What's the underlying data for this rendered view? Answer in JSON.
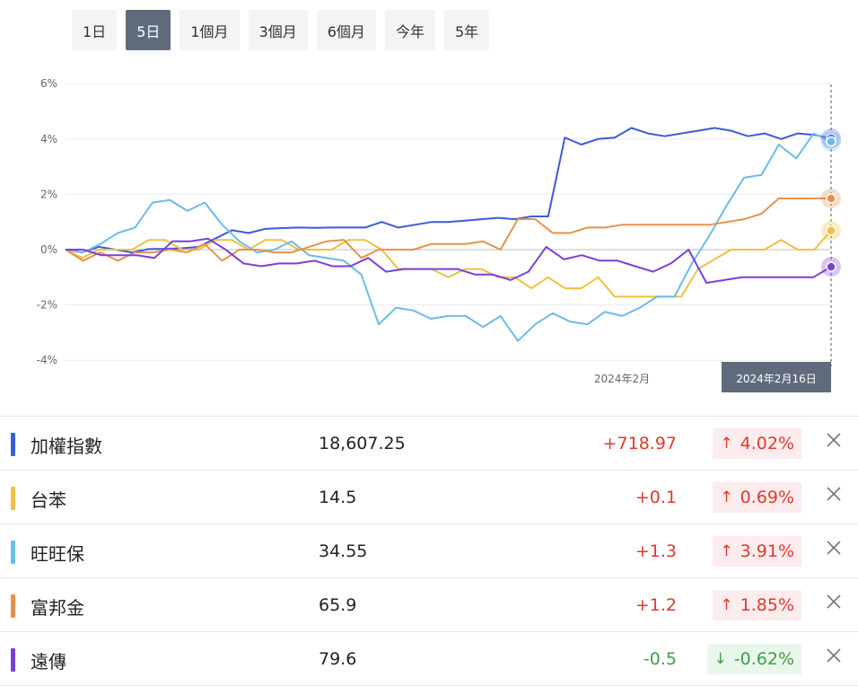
{
  "tabs": [
    {
      "label": "1日",
      "active": false
    },
    {
      "label": "5日",
      "active": true
    },
    {
      "label": "1個月",
      "active": false
    },
    {
      "label": "3個月",
      "active": false
    },
    {
      "label": "6個月",
      "active": false
    },
    {
      "label": "今年",
      "active": false
    },
    {
      "label": "5年",
      "active": false
    }
  ],
  "chart_data": {
    "type": "line",
    "ylim": [
      -4,
      6
    ],
    "yticks": [
      6,
      4,
      2,
      0,
      -2,
      -4
    ],
    "ytick_labels": [
      "6%",
      "4%",
      "2%",
      "0%",
      "-2%",
      "-4%"
    ],
    "x_tick_label": "2024年2月",
    "crosshair_label": "2024年2月16日",
    "grid": true,
    "series": [
      {
        "name": "加權指數",
        "color": "#3b5bdb",
        "values": [
          0,
          -0.1,
          0.1,
          0,
          -0.1,
          0.02,
          0.03,
          0.05,
          0.1,
          0.4,
          0.7,
          0.6,
          0.75,
          0.78,
          0.8,
          0.79,
          0.8,
          0.8,
          0.8,
          1,
          0.8,
          0.9,
          1,
          1,
          1.05,
          1.1,
          1.15,
          1.1,
          1.2,
          1.2,
          4.05,
          3.8,
          4,
          4.05,
          4.4,
          4.2,
          4.1,
          4.2,
          4.3,
          4.4,
          4.3,
          4.1,
          4.2,
          4,
          4.2,
          4.15,
          4.02
        ]
      },
      {
        "name": "台苯",
        "color": "#f0c040",
        "values": [
          0,
          -0.3,
          0,
          0,
          0,
          0.35,
          0.35,
          0,
          0,
          0.35,
          0.35,
          0,
          0.35,
          0.35,
          0,
          0,
          0,
          0.35,
          0.35,
          0,
          -0.7,
          -0.7,
          -0.7,
          -1,
          -0.7,
          -0.7,
          -1,
          -1,
          -1.4,
          -1,
          -1.4,
          -1.4,
          -1,
          -1.7,
          -1.7,
          -1.7,
          -1.7,
          -1.7,
          -0.7,
          -0.35,
          0,
          0,
          0,
          0.35,
          0,
          0,
          0.69
        ]
      },
      {
        "name": "旺旺保",
        "color": "#6bbbe8",
        "values": [
          0,
          -0.1,
          0.2,
          0.6,
          0.8,
          1.7,
          1.8,
          1.4,
          1.7,
          0.9,
          0.3,
          -0.1,
          0,
          0.3,
          -0.2,
          -0.3,
          -0.4,
          -0.9,
          -2.7,
          -2.1,
          -2.2,
          -2.5,
          -2.4,
          -2.4,
          -2.8,
          -2.4,
          -3.3,
          -2.7,
          -2.3,
          -2.6,
          -2.7,
          -2.25,
          -2.4,
          -2.1,
          -1.7,
          -1.7,
          -0.5,
          0.5,
          1.6,
          2.6,
          2.7,
          3.8,
          3.3,
          4.2,
          3.91
        ]
      },
      {
        "name": "富邦金",
        "color": "#e8914a",
        "values": [
          0,
          -0.4,
          -0.1,
          -0.4,
          -0.1,
          -0.1,
          0,
          -0.1,
          0.2,
          -0.4,
          0,
          0,
          -0.1,
          -0.1,
          0.1,
          0.3,
          0.35,
          -0.3,
          0,
          0,
          0,
          0.2,
          0.2,
          0.2,
          0.3,
          0,
          1.1,
          1.1,
          0.6,
          0.6,
          0.8,
          0.8,
          0.9,
          0.9,
          0.9,
          0.9,
          0.9,
          0.9,
          1,
          1.1,
          1.3,
          1.85,
          1.85,
          1.85,
          1.85
        ]
      },
      {
        "name": "遠傳",
        "color": "#7b3fd9",
        "values": [
          0,
          0,
          -0.2,
          -0.2,
          -0.2,
          -0.3,
          0.3,
          0.3,
          0.4,
          0,
          -0.5,
          -0.6,
          -0.5,
          -0.5,
          -0.4,
          -0.6,
          -0.6,
          -0.3,
          -0.8,
          -0.7,
          -0.7,
          -0.7,
          -0.7,
          -0.9,
          -0.9,
          -1.1,
          -0.8,
          0.1,
          -0.35,
          -0.2,
          -0.4,
          -0.4,
          -0.6,
          -0.8,
          -0.5,
          0,
          -1.2,
          -1.1,
          -1,
          -1,
          -1,
          -1,
          -1,
          -0.62
        ]
      }
    ]
  },
  "rows": [
    {
      "name": "加權指數",
      "color": "#3b5bdb",
      "price": "18,607.25",
      "change": "+718.97",
      "pct": "4.02%",
      "dir": "up",
      "arrow": "↑"
    },
    {
      "name": "台苯",
      "color": "#f0c040",
      "price": "14.5",
      "change": "+0.1",
      "pct": "0.69%",
      "dir": "up",
      "arrow": "↑"
    },
    {
      "name": "旺旺保",
      "color": "#6bbbe8",
      "price": "34.55",
      "change": "+1.3",
      "pct": "3.91%",
      "dir": "up",
      "arrow": "↑"
    },
    {
      "name": "富邦金",
      "color": "#e8914a",
      "price": "65.9",
      "change": "+1.2",
      "pct": "1.85%",
      "dir": "up",
      "arrow": "↑"
    },
    {
      "name": "遠傳",
      "color": "#7b3fd9",
      "price": "79.6",
      "change": "-0.5",
      "pct": "-0.62%",
      "dir": "down",
      "arrow": "↓"
    }
  ]
}
